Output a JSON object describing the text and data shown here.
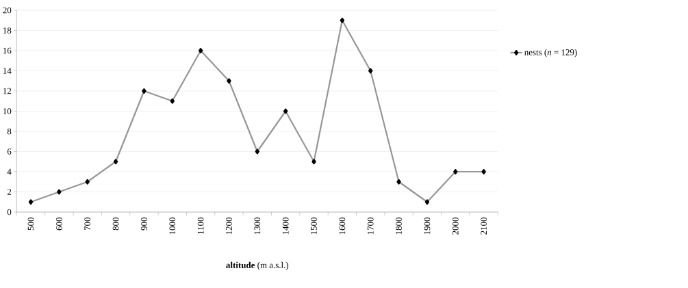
{
  "chart_data": {
    "type": "line",
    "xlabel": "**altitude** (m a.s.l.)",
    "categories": [
      "500",
      "600",
      "700",
      "800",
      "900",
      "1000",
      "1100",
      "1200",
      "1300",
      "1400",
      "1500",
      "1600",
      "1700",
      "1800",
      "1900",
      "2000",
      "2100"
    ],
    "series": [
      {
        "name": "nests (*n* = 129)",
        "color": "#969696",
        "values": [
          1,
          2,
          3,
          5,
          12,
          11,
          16,
          13,
          6,
          10,
          5,
          19,
          14,
          3,
          1,
          4,
          4
        ]
      }
    ],
    "ylim": [
      0,
      20
    ],
    "yticks": [
      0,
      2,
      4,
      6,
      8,
      10,
      12,
      14,
      16,
      18,
      20
    ],
    "grid": "y",
    "legend": "right",
    "marker": "diamond",
    "line_style": "solid"
  }
}
